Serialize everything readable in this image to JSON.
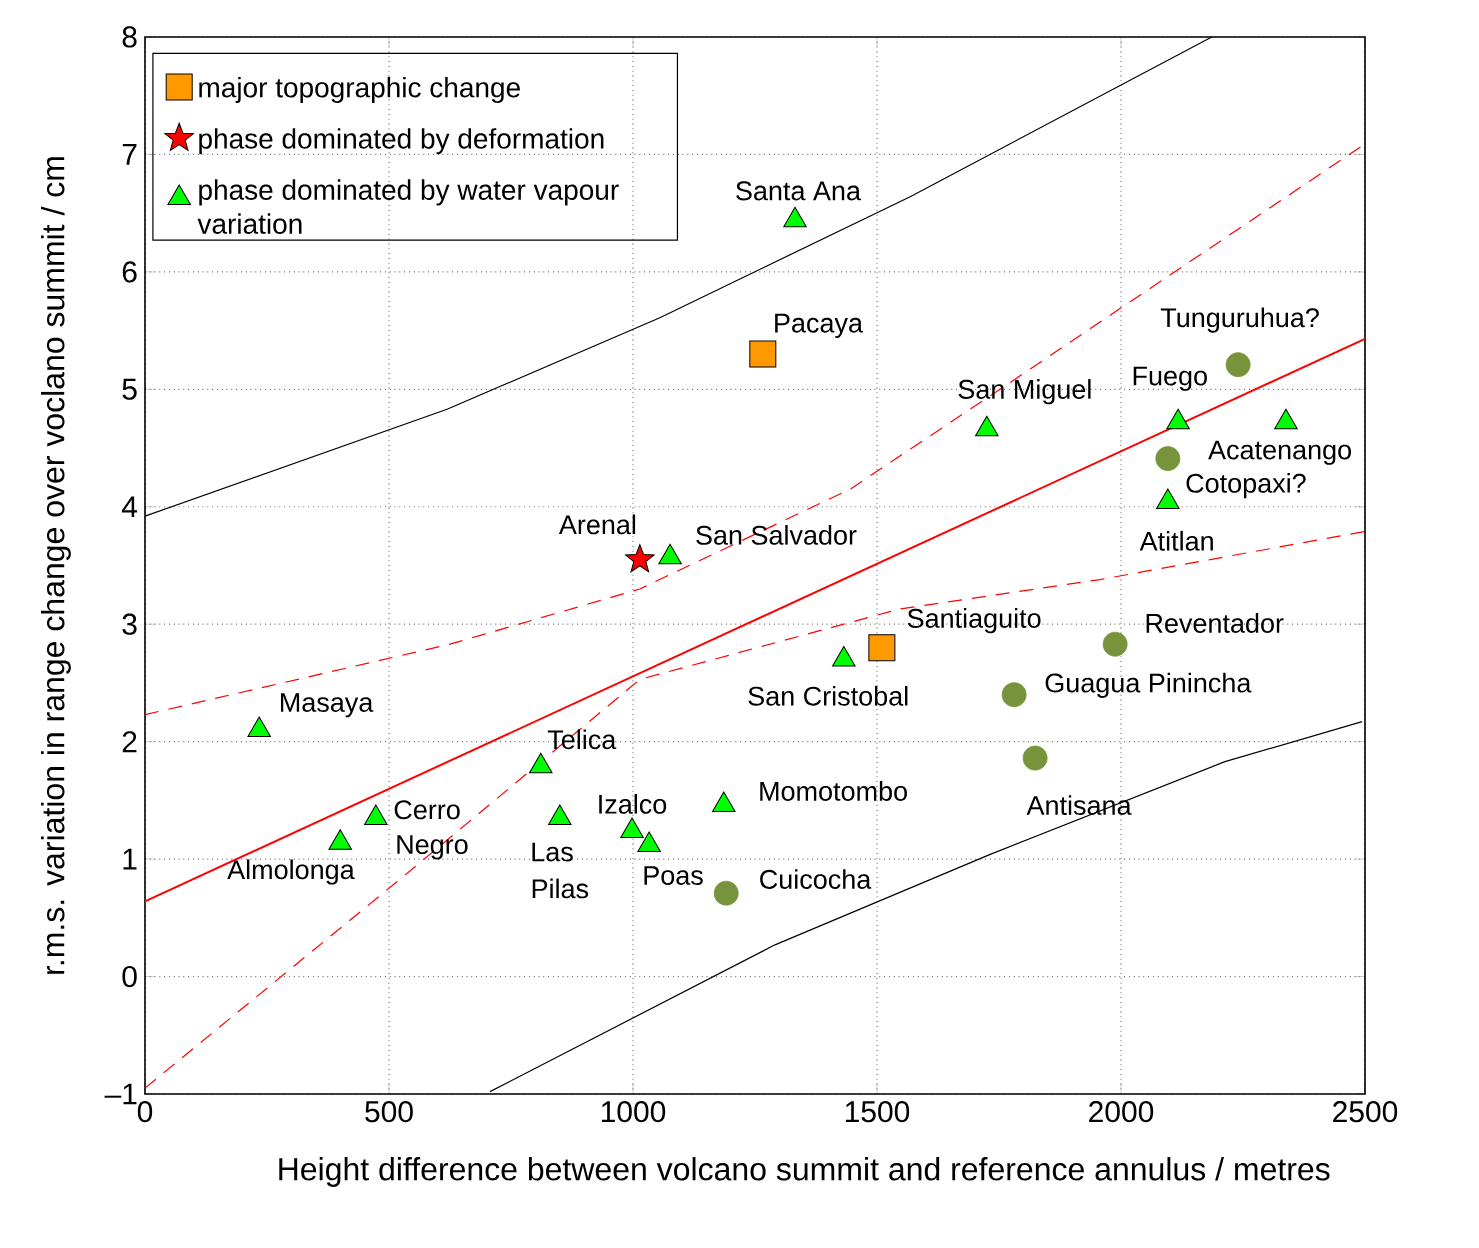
{
  "chart_data": {
    "type": "scatter",
    "xlabel": "Height difference between volcano summit and reference annulus / metres",
    "ylabel": "r.m.s. variation in range change over voclano summit / cm",
    "xlim": [
      0,
      2500
    ],
    "ylim": [
      -1,
      8
    ],
    "xticks": [
      0,
      500,
      1000,
      1500,
      2000,
      2500
    ],
    "yticks": [
      {
        "value": -1,
        "label": "–1"
      },
      0,
      1,
      2,
      3,
      4,
      5,
      6,
      7,
      8
    ],
    "grid": true,
    "legend": "top left",
    "series": [
      {
        "name": "major topographic change",
        "color": "#ff9900",
        "marker": "square",
        "x": [
          1266,
          1510
        ],
        "values": [
          5.3,
          2.8
        ]
      },
      {
        "name": "phase dominated by deformation",
        "color": "#ff0000",
        "marker": "star",
        "x": [
          1014
        ],
        "values": [
          3.55
        ]
      },
      {
        "name": "phase dominated by water vapour variation",
        "color": "#00ff00",
        "marker": "triangle",
        "x": [
          1332,
          1725,
          2117,
          2338,
          2096,
          1076,
          1432,
          234,
          811,
          1186,
          850,
          473,
          400,
          998,
          1033
        ],
        "values": [
          6.44,
          4.66,
          4.72,
          4.72,
          4.04,
          3.57,
          2.7,
          2.1,
          1.79,
          1.46,
          1.35,
          1.35,
          1.14,
          1.24,
          1.12
        ]
      },
      {
        "color": "#77933c",
        "marker": "circle",
        "x": [
          2240,
          2096,
          1988,
          1781,
          1824,
          1191
        ],
        "values": [
          5.21,
          4.41,
          2.83,
          2.4,
          1.86,
          0.71
        ]
      },
      {
        "type": "line",
        "color": "#000000",
        "line_style": "solid",
        "x": [
          0,
          619,
          1055,
          1568,
          2186
        ],
        "values": [
          3.92,
          4.83,
          5.61,
          6.64,
          8.0
        ]
      },
      {
        "type": "line",
        "color": "#000000",
        "line_style": "solid",
        "x": [
          707,
          1291,
          1732,
          2213,
          2494
        ],
        "values": [
          -0.98,
          0.27,
          1.04,
          1.83,
          2.17
        ]
      },
      {
        "type": "line",
        "color": "#ff0000",
        "line_style": "solid",
        "x": [
          0,
          2500
        ],
        "values": [
          0.64,
          5.43
        ]
      },
      {
        "type": "line",
        "color": "#ff0000",
        "line_style": "dashed",
        "x": [
          0,
          625,
          1014,
          1445,
          1752,
          2500
        ],
        "values": [
          2.23,
          2.83,
          3.3,
          4.15,
          5.0,
          7.09
        ]
      },
      {
        "type": "line",
        "color": "#ff0000",
        "line_style": "dashed",
        "x": [
          0,
          523,
          1014,
          1547,
          1957,
          2500
        ],
        "values": [
          -0.95,
          0.83,
          2.53,
          3.13,
          3.38,
          3.79
        ]
      }
    ],
    "annotations": [
      "Santa Ana",
      "Pacaya",
      "San Miguel",
      "Tunguruhua?",
      "Fuego",
      "Acatenango",
      "Cotopaxi?",
      "Atitlan",
      "Arenal",
      "San Salvador",
      "Santiaguito",
      "Reventador",
      "San Cristobal",
      "Guagua Pinincha",
      "Masaya",
      "Telica",
      "Momotombo",
      "Antisana",
      "Cerro",
      "Negro",
      "Izalco",
      "Las",
      "Pilas",
      "Poas",
      "Almolonga",
      "Cuicocha"
    ]
  }
}
